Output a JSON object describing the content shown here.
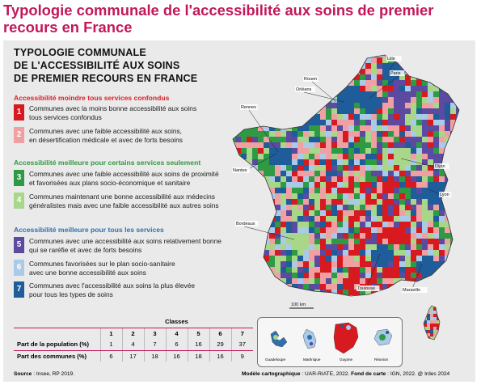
{
  "page_title": "Typologie communale de l'accessibilité aux soins de premier recours en France",
  "map_title": [
    "TYPOLOGIE COMMUNALE",
    "DE L'ACCESSIBILITÉ AUX SOINS",
    "DE PREMIER RECOURS EN FRANCE"
  ],
  "sections": [
    {
      "heading": "Accessibilité moindre tous services confondus",
      "color": "#d8232a"
    },
    {
      "heading": "Accessibilité meilleure pour certains services seulement",
      "color": "#2e9a3e"
    },
    {
      "heading": "Accessibilité meilleure pour tous les services",
      "color": "#2f6fb0"
    }
  ],
  "classes": [
    {
      "num": "1",
      "color": "#d71920",
      "lines": [
        "Communes avec la moins bonne accessibilité aux soins",
        "tous services confondus"
      ]
    },
    {
      "num": "2",
      "color": "#f0a0a3",
      "lines": [
        "Communes avec une faible accessibilité aux soins,",
        "en désertification médicale et avec de forts besoins"
      ]
    },
    {
      "num": "3",
      "color": "#2f9a44",
      "lines": [
        "Communes avec une faible accessibilité aux soins de proximité",
        "et favorisées aux plans socio-économique et sanitaire"
      ]
    },
    {
      "num": "4",
      "color": "#a9d78a",
      "lines": [
        "Communes maintenant une bonne accessibilité aux médecins",
        "généralistes mais avec une faible accessibilité aux autres soins"
      ]
    },
    {
      "num": "5",
      "color": "#5b4aa0",
      "lines": [
        "Communes avec une accessibilité aux soins relativement bonne",
        "qui se raréfie et avec de forts besoins"
      ]
    },
    {
      "num": "6",
      "color": "#a9cbe8",
      "lines": [
        "Communes favorisées sur le plan socio-sanitaire",
        "avec une bonne accessibilité aux soins"
      ]
    },
    {
      "num": "7",
      "color": "#1f5c9a",
      "lines": [
        "Communes avec l'accessibilité aux soins la plus élevée",
        "pour tous les types de soins"
      ]
    }
  ],
  "cities": [
    "Lille",
    "Paris",
    "Rouen",
    "Orléans",
    "Rennes",
    "Nantes",
    "Dijon",
    "Lyon",
    "Bordeaux",
    "Toulouse",
    "Marseille"
  ],
  "scale_label": "100 km",
  "table": {
    "header_label": "Classes",
    "columns": [
      "1",
      "2",
      "3",
      "4",
      "5",
      "6",
      "7"
    ],
    "rows": [
      {
        "label": "Part de la population (%)",
        "values": [
          "1",
          "4",
          "7",
          "6",
          "16",
          "29",
          "37"
        ]
      },
      {
        "label": "Part des communes (%)",
        "values": [
          "6",
          "17",
          "18",
          "16",
          "18",
          "16",
          "9"
        ]
      }
    ]
  },
  "source_label": "Source",
  "source_text": " : Insee, RP 2019.",
  "credits": {
    "label1": "Modèle cartographique",
    "text1": " : UAR-RIATE, 2022. ",
    "label2": "Fond de carte",
    "text2": " : IGN, 2022. @ Irdes 2024"
  },
  "dom_labels": [
    "Guadeloupe",
    "Martinique",
    "Guyane",
    "Réunion"
  ]
}
